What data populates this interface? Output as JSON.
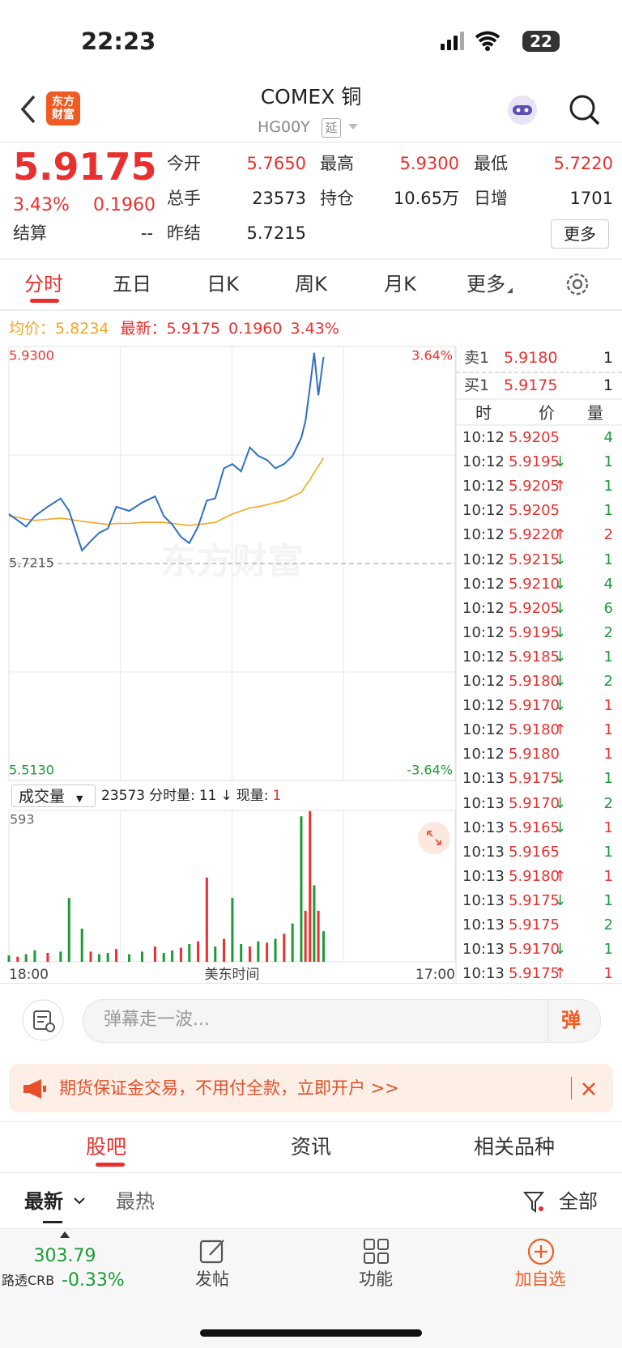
{
  "status_bar": {
    "time": "22:23",
    "battery": "22"
  },
  "logo": [
    "东方",
    "财富"
  ],
  "header": {
    "title": "COMEX 铜",
    "code": "HG00Y",
    "tag": "延"
  },
  "quote": {
    "price": "5.9175",
    "change_pct": "3.43%",
    "change": "0.1960",
    "fields": [
      {
        "label": "今开",
        "value": "5.7650",
        "color": "#e8312f"
      },
      {
        "label": "最高",
        "value": "5.9300",
        "color": "#e8312f"
      },
      {
        "label": "最低",
        "value": "5.7220",
        "color": "#e8312f"
      },
      {
        "label": "总手",
        "value": "23573",
        "color": "#222222"
      },
      {
        "label": "持仓",
        "value": "10.65万",
        "color": "#222222"
      },
      {
        "label": "日增",
        "value": "1701",
        "color": "#222222"
      },
      {
        "label": "结算",
        "value": "--",
        "color": "#222222"
      },
      {
        "label": "昨结",
        "value": "5.7215",
        "color": "#222222"
      }
    ],
    "more": "更多"
  },
  "tabs": [
    "分时",
    "五日",
    "日K",
    "周K",
    "月K",
    "更多"
  ],
  "info": {
    "avg_label": "均价：",
    "avg": "5.8234",
    "last_label": "最新：",
    "last": "5.9175",
    "change": "0.1960",
    "change_pct": "3.43%"
  },
  "watermark": "东方财富",
  "volume_bar": {
    "selector": "成交量",
    "total": "23573",
    "min_label": "分时量:",
    "min_value": "11",
    "arrow": "↓",
    "now_label": "现量:",
    "now_value": "1"
  },
  "chart_data": [
    {
      "type": "line",
      "x": [
        0,
        27,
        53,
        80,
        120,
        160,
        186,
        226,
        253,
        279,
        306,
        332,
        372,
        412,
        452,
        479,
        505,
        532,
        558,
        585,
        612,
        638,
        665,
        691,
        718,
        745,
        771,
        798,
        824,
        851,
        877,
        904,
        917,
        931,
        944,
        957,
        973
      ],
      "series": [
        {
          "color": "#2f6fc6",
          "values": [
            5.769,
            5.763,
            5.757,
            5.767,
            5.776,
            5.784,
            5.772,
            5.734,
            5.743,
            5.751,
            5.755,
            5.776,
            5.772,
            5.78,
            5.786,
            5.767,
            5.759,
            5.747,
            5.741,
            5.757,
            5.782,
            5.784,
            5.813,
            5.817,
            5.81,
            5.833,
            5.825,
            5.821,
            5.813,
            5.817,
            5.825,
            5.842,
            5.858,
            5.891,
            5.924,
            5.883,
            5.92
          ]
        },
        {
          "color": "#f5a623",
          "values": [
            5.767,
            5.766,
            5.764,
            5.763,
            5.764,
            5.765,
            5.764,
            5.762,
            5.761,
            5.76,
            5.759,
            5.76,
            5.76,
            5.761,
            5.761,
            5.761,
            5.76,
            5.759,
            5.758,
            5.759,
            5.76,
            5.761,
            5.765,
            5.769,
            5.772,
            5.775,
            5.776,
            5.778,
            5.78,
            5.782,
            5.786,
            5.79,
            5.796,
            5.802,
            5.809,
            5.815,
            5.823
          ]
        }
      ],
      "xlim": [
        0,
        1380
      ],
      "xticks": [
        {
          "value": 0,
          "label": "18:00"
        },
        {
          "value": 1380,
          "label": "17:00"
        }
      ],
      "xlabel": "美东时间",
      "ylim": [
        5.513,
        5.93
      ],
      "yticks": [
        {
          "value": 5.93,
          "label": "5.9300"
        },
        {
          "value": 5.7215,
          "label": "5.7215"
        },
        {
          "value": 5.513,
          "label": "5.5130"
        }
      ],
      "y2lim": [
        -3.64,
        3.64
      ],
      "y2ticks": [
        {
          "value": 3.64,
          "label": "3.64%"
        },
        {
          "value": -3.64,
          "label": "-3.64%"
        }
      ]
    },
    {
      "type": "bar",
      "x": [
        0,
        27,
        53,
        80,
        120,
        160,
        186,
        226,
        253,
        279,
        306,
        332,
        372,
        412,
        452,
        479,
        505,
        532,
        558,
        585,
        612,
        638,
        665,
        691,
        718,
        745,
        771,
        798,
        824,
        851,
        877,
        904,
        917,
        931,
        944,
        957,
        973
      ],
      "values": [
        25,
        20,
        30,
        45,
        35,
        40,
        250,
        130,
        40,
        30,
        35,
        50,
        30,
        40,
        60,
        35,
        45,
        55,
        70,
        80,
        330,
        60,
        90,
        250,
        70,
        60,
        80,
        75,
        90,
        110,
        150,
        570,
        200,
        590,
        300,
        200,
        120
      ],
      "colors": [
        "#1a9c35",
        "#e8312f",
        "#1a9c35",
        "#1a9c35",
        "#e8312f",
        "#1a9c35",
        "#1a9c35",
        "#1a9c35",
        "#e8312f",
        "#1a9c35",
        "#1a9c35",
        "#e8312f",
        "#1a9c35",
        "#1a9c35",
        "#e8312f",
        "#1a9c35",
        "#1a9c35",
        "#e8312f",
        "#1a9c35",
        "#e8312f",
        "#e8312f",
        "#1a9c35",
        "#e8312f",
        "#1a9c35",
        "#1a9c35",
        "#e8312f",
        "#1a9c35",
        "#e8312f",
        "#1a9c35",
        "#e8312f",
        "#1a9c35",
        "#1a9c35",
        "#e8312f",
        "#e8312f",
        "#1a9c35",
        "#e8312f",
        "#1a9c35"
      ],
      "xlim": [
        0,
        1380
      ],
      "ylim": [
        0,
        593
      ],
      "yticks": [
        593
      ]
    }
  ],
  "order_book": [
    {
      "label": "卖1",
      "price": "5.9180",
      "qty": 1
    },
    {
      "label": "买1",
      "price": "5.9175",
      "qty": 1
    }
  ],
  "trades": {
    "header": [
      "时",
      "价",
      "量"
    ],
    "rows": [
      {
        "time": "10:12",
        "price": "5.9205",
        "qty": 4,
        "qty_color": "#1a9c35"
      },
      {
        "time": "10:12",
        "price": "5.9195",
        "dir": "↓",
        "qty": 1,
        "qty_color": "#1a9c35"
      },
      {
        "time": "10:12",
        "price": "5.9205",
        "dir": "↑",
        "qty": 1,
        "qty_color": "#1a9c35"
      },
      {
        "time": "10:12",
        "price": "5.9205",
        "qty": 1,
        "qty_color": "#1a9c35"
      },
      {
        "time": "10:12",
        "price": "5.9220",
        "dir": "↑",
        "qty": 2,
        "qty_color": "#e8312f"
      },
      {
        "time": "10:12",
        "price": "5.9215",
        "dir": "↓",
        "qty": 1,
        "qty_color": "#1a9c35"
      },
      {
        "time": "10:12",
        "price": "5.9210",
        "dir": "↓",
        "qty": 4,
        "qty_color": "#1a9c35"
      },
      {
        "time": "10:12",
        "price": "5.9205",
        "dir": "↓",
        "qty": 6,
        "qty_color": "#1a9c35"
      },
      {
        "time": "10:12",
        "price": "5.9195",
        "dir": "↓",
        "qty": 2,
        "qty_color": "#1a9c35"
      },
      {
        "time": "10:12",
        "price": "5.9185",
        "dir": "↓",
        "qty": 1,
        "qty_color": "#1a9c35"
      },
      {
        "time": "10:12",
        "price": "5.9180",
        "dir": "↓",
        "qty": 2,
        "qty_color": "#1a9c35"
      },
      {
        "time": "10:12",
        "price": "5.9170",
        "dir": "↓",
        "qty": 1,
        "qty_color": "#e8312f"
      },
      {
        "time": "10:12",
        "price": "5.9180",
        "dir": "↑",
        "qty": 1,
        "qty_color": "#e8312f"
      },
      {
        "time": "10:12",
        "price": "5.9180",
        "qty": 1,
        "qty_color": "#e8312f"
      },
      {
        "time": "10:13",
        "price": "5.9175",
        "dir": "↓",
        "qty": 1,
        "qty_color": "#1a9c35"
      },
      {
        "time": "10:13",
        "price": "5.9170",
        "dir": "↓",
        "qty": 2,
        "qty_color": "#1a9c35"
      },
      {
        "time": "10:13",
        "price": "5.9165",
        "dir": "↓",
        "qty": 1,
        "qty_color": "#e8312f"
      },
      {
        "time": "10:13",
        "price": "5.9165",
        "qty": 1,
        "qty_color": "#1a9c35"
      },
      {
        "time": "10:13",
        "price": "5.9180",
        "dir": "↑",
        "qty": 1,
        "qty_color": "#e8312f"
      },
      {
        "time": "10:13",
        "price": "5.9175",
        "dir": "↓",
        "qty": 1,
        "qty_color": "#1a9c35"
      },
      {
        "time": "10:13",
        "price": "5.9175",
        "qty": 2,
        "qty_color": "#1a9c35"
      },
      {
        "time": "10:13",
        "price": "5.9170",
        "dir": "↓",
        "qty": 1,
        "qty_color": "#1a9c35"
      },
      {
        "time": "10:13",
        "price": "5.9175",
        "dir": "↑",
        "qty": 1,
        "qty_color": "#e8312f"
      }
    ]
  },
  "comment_placeholder": "弹幕走一波...",
  "danmu": "弹",
  "ad": "期货保证金交易，不用付全款，立即开户 >>",
  "section_tabs": [
    "股吧",
    "资讯",
    "相关品种"
  ],
  "sub_tabs": [
    "最新",
    "最热"
  ],
  "filter": "全部",
  "bottom": {
    "index_value": "303.79",
    "index_name": "路透CRB",
    "index_change": "-0.33%",
    "nav": [
      "发帖",
      "功能",
      "加自选"
    ]
  }
}
